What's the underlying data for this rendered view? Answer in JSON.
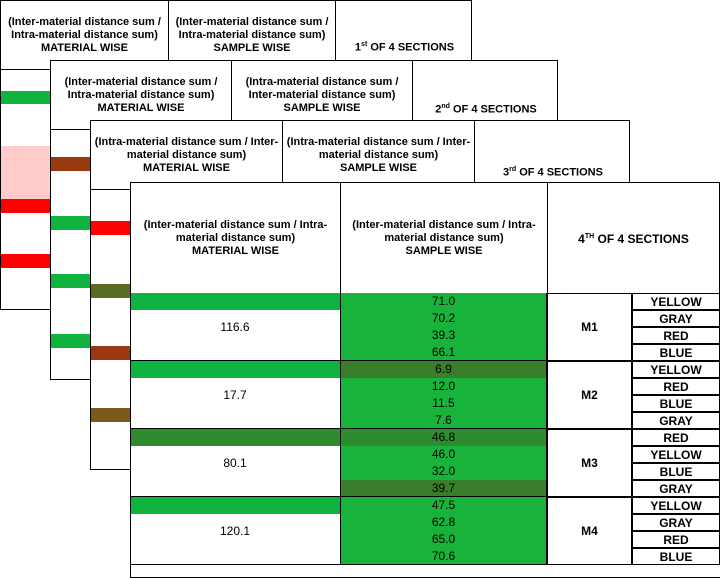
{
  "sheets": [
    {
      "header_material": "(Inter-material distance sum / Intra-material distance sum)",
      "header_material_sub": "MATERIAL WISE",
      "header_sample": "(Inter-material distance sum / Intra-material distance sum)",
      "header_sample_sub": "SAMPLE WISE",
      "section_num": "1",
      "section_sup": "st",
      "section_rest": " OF 4 SECTIONS"
    },
    {
      "header_material": "(Inter-material distance sum / Intra-material distance sum)",
      "header_material_sub": "MATERIAL WISE",
      "header_sample": "(Intra-material distance sum / Inter-material distance sum)",
      "header_sample_sub": "SAMPLE WISE",
      "section_num": "2",
      "section_sup": "nd",
      "section_rest": " OF 4 SECTIONS"
    },
    {
      "header_material": "(Intra-material distance sum / Inter-material distance sum)",
      "header_material_sub": "MATERIAL WISE",
      "header_sample": "(Intra-material distance sum / Inter-material distance sum)",
      "header_sample_sub": "SAMPLE WISE",
      "section_num": "3",
      "section_sup": "rd",
      "section_rest": " OF 4 SECTIONS"
    }
  ],
  "front": {
    "header_material": "(Inter-material distance sum / Intra-material distance sum)",
    "header_material_sub": "MATERIAL WISE",
    "header_sample": "(Inter-material distance sum / Intra-material distance sum)",
    "header_sample_sub": "SAMPLE WISE",
    "section_num": "4",
    "section_sup": "TH",
    "section_rest": " OF 4 SECTIONS",
    "groups": [
      {
        "material": "M1",
        "sum": "116.6",
        "values": [
          "71.0",
          "70.2",
          "39.3",
          "66.1"
        ],
        "colors": [
          "YELLOW",
          "GRAY",
          "RED",
          "BLUE"
        ]
      },
      {
        "material": "M2",
        "sum": "17.7",
        "values": [
          "6.9",
          "12.0",
          "11.5",
          "7.6"
        ],
        "colors": [
          "YELLOW",
          "RED",
          "BLUE",
          "GRAY"
        ]
      },
      {
        "material": "M3",
        "sum": "80.1",
        "values": [
          "46.8",
          "46.0",
          "32.0",
          "39.7"
        ],
        "colors": [
          "RED",
          "YELLOW",
          "BLUE",
          "GRAY"
        ]
      },
      {
        "material": "M4",
        "sum": "120.1",
        "values": [
          "47.5",
          "62.8",
          "65.0",
          "70.6"
        ],
        "colors": [
          "YELLOW",
          "GRAY",
          "RED",
          "BLUE"
        ]
      }
    ]
  },
  "palette": {
    "green": "#0fb33f",
    "sample_green": "#17b33a",
    "dark_green_1": "#2e8b2e",
    "dark_green_2": "#3a7d2a",
    "red": "#ff0000",
    "pink": "#ffcccc",
    "brown": "#9b3a12",
    "olive": "#5a6b22",
    "olive_brown": "#7a5a1a"
  }
}
